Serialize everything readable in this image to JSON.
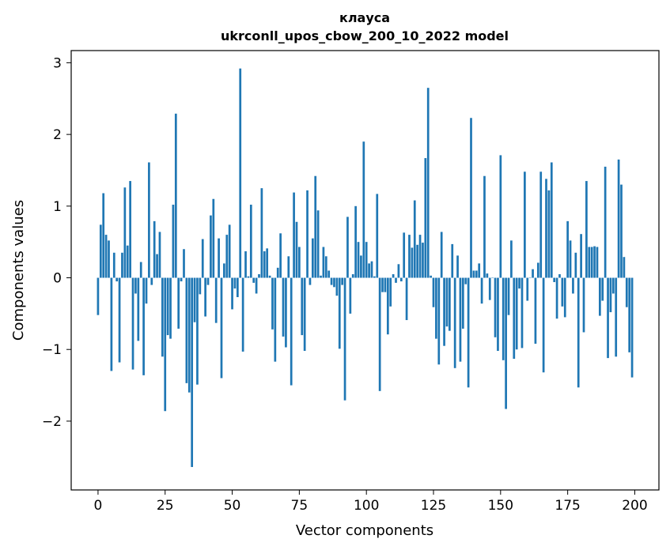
{
  "chart_data": {
    "type": "bar",
    "title": "клауса",
    "subtitle": "ukrconll_upos_cbow_200_10_2022 model",
    "xlabel": "Vector components",
    "ylabel": "Components values",
    "xlim": [
      -10,
      209
    ],
    "ylim": [
      -2.96,
      3.17
    ],
    "xticks": [
      0,
      25,
      50,
      75,
      100,
      125,
      150,
      175,
      200
    ],
    "xtick_labels": [
      "0",
      "25",
      "50",
      "75",
      "100",
      "125",
      "150",
      "175",
      "200"
    ],
    "yticks": [
      -2,
      -1,
      0,
      1,
      2,
      3
    ],
    "ytick_labels": [
      "−2",
      "−1",
      "0",
      "1",
      "2",
      "3"
    ],
    "bar_color": "#1f77b4",
    "grid": false,
    "values": [
      -0.52,
      0.74,
      1.18,
      0.6,
      0.52,
      -1.3,
      0.35,
      -0.05,
      -1.18,
      0.35,
      1.26,
      0.45,
      1.35,
      -1.28,
      -0.22,
      -0.88,
      0.22,
      -1.36,
      -0.36,
      1.61,
      -0.1,
      0.79,
      0.33,
      0.64,
      -1.1,
      -1.86,
      -0.8,
      -0.85,
      1.02,
      2.29,
      -0.71,
      -0.05,
      0.4,
      -1.47,
      -1.6,
      -2.64,
      -0.62,
      -1.49,
      -0.23,
      0.54,
      -0.54,
      -0.1,
      0.87,
      1.1,
      -0.63,
      0.55,
      -1.4,
      0.2,
      0.6,
      0.74,
      -0.44,
      -0.15,
      -0.27,
      2.92,
      -1.03,
      0.37,
      0.02,
      1.02,
      -0.07,
      -0.22,
      0.05,
      1.25,
      0.37,
      0.41,
      0.03,
      -0.72,
      -1.17,
      0.14,
      0.62,
      -0.82,
      -0.97,
      0.3,
      -1.5,
      1.19,
      0.78,
      0.43,
      -0.8,
      -1.02,
      1.22,
      -0.1,
      0.55,
      1.42,
      0.94,
      0.03,
      0.43,
      0.3,
      0.1,
      -0.1,
      -0.13,
      -0.25,
      -0.99,
      -0.1,
      -1.71,
      0.85,
      -0.5,
      0.05,
      1.0,
      0.5,
      0.31,
      1.9,
      0.5,
      0.2,
      0.23,
      0.02,
      1.17,
      -1.58,
      -0.2,
      -0.2,
      -0.79,
      -0.4,
      0.05,
      -0.07,
      0.19,
      -0.05,
      0.63,
      -0.59,
      0.6,
      0.42,
      1.08,
      0.46,
      0.6,
      0.49,
      1.67,
      2.65,
      0.03,
      -0.41,
      -0.85,
      -1.21,
      0.64,
      -0.95,
      -0.68,
      -0.74,
      0.47,
      -1.26,
      0.31,
      -1.17,
      -0.71,
      -0.09,
      -1.53,
      2.23,
      0.1,
      0.1,
      0.2,
      -0.36,
      1.42,
      0.06,
      -0.31,
      0.0,
      -0.83,
      -1.02,
      1.71,
      -1.15,
      -1.83,
      -0.52,
      0.52,
      -1.13,
      -1.0,
      -0.15,
      -0.98,
      1.48,
      -0.32,
      0.0,
      0.12,
      -0.92,
      0.21,
      1.48,
      -1.32,
      1.38,
      1.22,
      1.61,
      -0.06,
      -0.57,
      0.05,
      -0.4,
      -0.55,
      0.79,
      0.52,
      -0.22,
      0.35,
      -1.53,
      0.61,
      -0.76,
      1.35,
      0.43,
      0.43,
      0.44,
      0.43,
      -0.53,
      -0.32,
      1.55,
      -1.12,
      -0.48,
      -0.22,
      -1.1,
      1.65,
      1.3,
      0.29,
      -0.41,
      -1.04,
      -1.39
    ]
  }
}
